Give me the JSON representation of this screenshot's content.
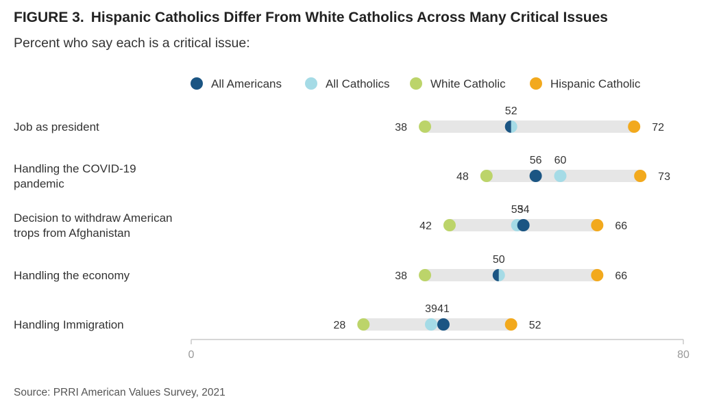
{
  "header": {
    "figure_label": "FIGURE 3.",
    "title": "Hispanic Catholics Differ From White Catholics Across Many Critical Issues",
    "subtitle": "Percent who say each is a critical issue:"
  },
  "footer": {
    "source": "Source: PRRI American Values Survey, 2021"
  },
  "chart_data": {
    "type": "dot-range",
    "title": "Hispanic Catholics Differ From White Catholics Across Many Critical Issues",
    "subtitle": "Percent who say each is a critical issue:",
    "xlim": [
      0,
      80
    ],
    "x_ticks": [
      0,
      80
    ],
    "legend_position": "top",
    "categories": [
      "Job as president",
      "Handling the COVID-19 pandemic",
      "Decision to withdraw American trops from Afghanistan",
      "Handling the economy",
      "Handling Immigration"
    ],
    "category_lines": [
      [
        "Job as president"
      ],
      [
        "Handling the COVID-19",
        "pandemic"
      ],
      [
        "Decision to withdraw American",
        "trops from Afghanistan"
      ],
      [
        "Handling the economy"
      ],
      [
        "Handling Immigration"
      ]
    ],
    "series": [
      {
        "name": "All Americans",
        "color": "#1b5583",
        "values": [
          52,
          56,
          54,
          50,
          41
        ]
      },
      {
        "name": "All Catholics",
        "color": "#a5dbe6",
        "values": [
          52,
          60,
          53,
          50,
          39
        ]
      },
      {
        "name": "White Catholic",
        "color": "#bcd46a",
        "values": [
          38,
          48,
          42,
          38,
          28
        ]
      },
      {
        "name": "Hispanic Catholic",
        "color": "#f2a91d",
        "values": [
          72,
          73,
          66,
          66,
          52
        ]
      }
    ],
    "track_color": "#e6e6e6"
  }
}
